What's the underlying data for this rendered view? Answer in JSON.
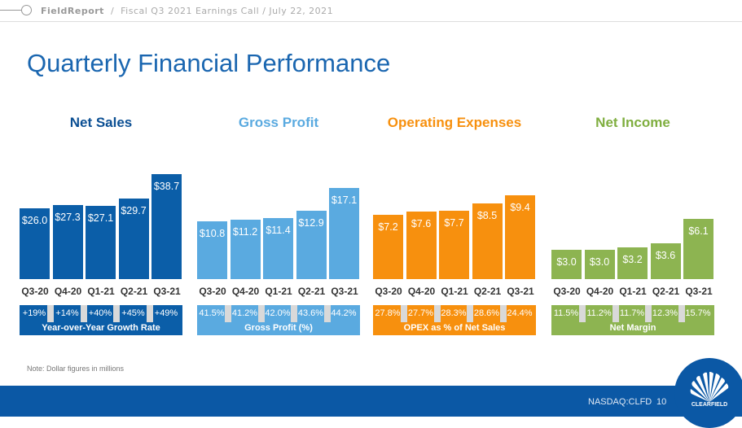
{
  "header": {
    "brand": "FieldReport",
    "separator": "/",
    "subtitle": "Fiscal Q3 2021 Earnings Call / July 22, 2021"
  },
  "title": "Quarterly Financial Performance",
  "quarters": [
    "Q3-20",
    "Q4-20",
    "Q1-21",
    "Q2-21",
    "Q3-21"
  ],
  "chart_data": [
    {
      "type": "bar",
      "title": "Net Sales",
      "color": "#0b5ea8",
      "categories": [
        "Q3-20",
        "Q4-20",
        "Q1-21",
        "Q2-21",
        "Q3-21"
      ],
      "values": [
        26.0,
        27.3,
        27.1,
        29.7,
        38.7
      ],
      "labels": [
        "$26.0",
        "$27.3",
        "$27.1",
        "$29.7",
        "$38.7"
      ],
      "stats": [
        "+19%",
        "+14%",
        "+40%",
        "+45%",
        "+49%"
      ],
      "stat_caption": "Year-over-Year Growth Rate"
    },
    {
      "type": "bar",
      "title": "Gross Profit",
      "color": "#5aaae0",
      "categories": [
        "Q3-20",
        "Q4-20",
        "Q1-21",
        "Q2-21",
        "Q3-21"
      ],
      "values": [
        10.8,
        11.2,
        11.4,
        12.9,
        17.1
      ],
      "labels": [
        "$10.8",
        "$11.2",
        "$11.4",
        "$12.9",
        "$17.1"
      ],
      "stats": [
        "41.5%",
        "41.2%",
        "42.0%",
        "43.6%",
        "44.2%"
      ],
      "stat_caption": "Gross Profit (%)"
    },
    {
      "type": "bar",
      "title": "Operating Expenses",
      "color": "#f7900e",
      "categories": [
        "Q3-20",
        "Q4-20",
        "Q1-21",
        "Q2-21",
        "Q3-21"
      ],
      "values": [
        7.2,
        7.6,
        7.7,
        8.5,
        9.4
      ],
      "labels": [
        "$7.2",
        "$7.6",
        "$7.7",
        "$8.5",
        "$9.4"
      ],
      "stats": [
        "27.8%",
        "27.7%",
        "28.3%",
        "28.6%",
        "24.4%"
      ],
      "stat_caption": "OPEX as % of Net Sales"
    },
    {
      "type": "bar",
      "title": "Net Income",
      "color": "#8db451",
      "categories": [
        "Q3-20",
        "Q4-20",
        "Q1-21",
        "Q2-21",
        "Q3-21"
      ],
      "values": [
        3.0,
        3.0,
        3.2,
        3.6,
        6.1
      ],
      "labels": [
        "$3.0",
        "$3.0",
        "$3.2",
        "$3.6",
        "$6.1"
      ],
      "stats": [
        "11.5%",
        "11.2%",
        "11.7%",
        "12.3%",
        "15.7%"
      ],
      "stat_caption": "Net Margin"
    }
  ],
  "note": "Note: Dollar figures in millions",
  "footer": {
    "ticker": "NASDAQ:CLFD",
    "page": "10",
    "logo_text": "CLEARFIELD"
  }
}
